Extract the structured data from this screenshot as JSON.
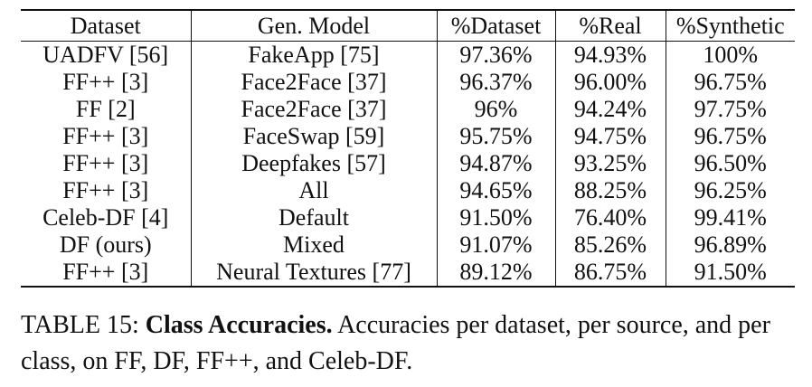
{
  "table": {
    "headers": [
      "Dataset",
      "Gen. Model",
      "%Dataset",
      "%Real",
      "%Synthetic"
    ],
    "rows": [
      [
        "UADFV [56]",
        "FakeApp [75]",
        "97.36%",
        "94.93%",
        "100%"
      ],
      [
        "FF++ [3]",
        "Face2Face [37]",
        "96.37%",
        "96.00%",
        "96.75%"
      ],
      [
        "FF [2]",
        "Face2Face [37]",
        "96%",
        "94.24%",
        "97.75%"
      ],
      [
        "FF++ [3]",
        "FaceSwap [59]",
        "95.75%",
        "94.75%",
        "96.75%"
      ],
      [
        "FF++ [3]",
        "Deepfakes [57]",
        "94.87%",
        "93.25%",
        "96.50%"
      ],
      [
        "FF++ [3]",
        "All",
        "94.65%",
        "88.25%",
        "96.25%"
      ],
      [
        "Celeb-DF [4]",
        "Default",
        "91.50%",
        "76.40%",
        "99.41%"
      ],
      [
        "DF (ours)",
        "Mixed",
        "91.07%",
        "85.26%",
        "96.89%"
      ],
      [
        "FF++ [3]",
        "Neural Textures [77]",
        "89.12%",
        "86.75%",
        "91.50%"
      ]
    ]
  },
  "caption": {
    "label": "TABLE 15: ",
    "title": "Class Accuracies.",
    "text": " Accuracies per dataset, per source, and per class, on FF, DF, FF++, and Celeb-DF."
  }
}
